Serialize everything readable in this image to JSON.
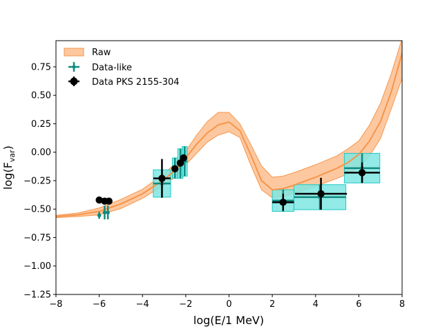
{
  "chart_data": {
    "type": "line",
    "title": "",
    "xlabel": "log(E/1 MeV)",
    "ylabel_main": "log(F",
    "ylabel_sub": "var",
    "ylabel_close": ")",
    "xlim": [
      -8,
      8
    ],
    "ylim": [
      -1.25,
      0.98
    ],
    "xticks": [
      -8,
      -6,
      -4,
      -2,
      0,
      2,
      4,
      6,
      8
    ],
    "xtick_labels": [
      "−8",
      "−6",
      "−4",
      "−2",
      "0",
      "2",
      "4",
      "6",
      "8"
    ],
    "yticks": [
      -1.25,
      -1.0,
      -0.75,
      -0.5,
      -0.25,
      0.0,
      0.25,
      0.5,
      0.75
    ],
    "ytick_labels": [
      "−1.25",
      "−1.00",
      "−0.75",
      "−0.50",
      "−0.25",
      "0.00",
      "0.25",
      "0.50",
      "0.75"
    ],
    "legend_position": "top-left",
    "legend": [
      {
        "label": "Raw",
        "kind": "band"
      },
      {
        "label": "Data-like",
        "kind": "errorbar-small"
      },
      {
        "label": "Data PKS 2155-304",
        "kind": "errorbar-large"
      }
    ],
    "colors": {
      "raw_line": "#f5954a",
      "raw_band": "#fdc8a0",
      "raw_band_edge": "#f5954a",
      "data_like": "#108a7e",
      "data_like_box": "#7fe6e2",
      "data_like_box_edge": "#1cc8c4",
      "data_pks": "#000000"
    },
    "raw_model": {
      "x": [
        -8.0,
        -7.0,
        -6.0,
        -5.0,
        -4.0,
        -3.0,
        -2.5,
        -2.0,
        -1.5,
        -1.0,
        -0.5,
        0.0,
        0.5,
        1.0,
        1.5,
        2.0,
        2.5,
        3.0,
        4.0,
        5.0,
        5.5,
        6.0,
        6.5,
        7.0,
        7.5,
        8.0
      ],
      "y": [
        -0.565,
        -0.55,
        -0.52,
        -0.455,
        -0.365,
        -0.24,
        -0.16,
        -0.05,
        0.07,
        0.17,
        0.24,
        0.265,
        0.19,
        -0.02,
        -0.25,
        -0.33,
        -0.32,
        -0.29,
        -0.22,
        -0.14,
        -0.09,
        -0.02,
        0.1,
        0.27,
        0.53,
        0.87
      ],
      "upper": [
        -0.555,
        -0.535,
        -0.49,
        -0.415,
        -0.325,
        -0.19,
        -0.1,
        0.01,
        0.15,
        0.27,
        0.35,
        0.35,
        0.25,
        0.07,
        -0.12,
        -0.22,
        -0.21,
        -0.18,
        -0.11,
        -0.03,
        0.03,
        0.1,
        0.24,
        0.43,
        0.69,
        1.0
      ],
      "lower": [
        -0.575,
        -0.565,
        -0.55,
        -0.495,
        -0.405,
        -0.29,
        -0.22,
        -0.11,
        -0.01,
        0.09,
        0.15,
        0.18,
        0.13,
        -0.11,
        -0.33,
        -0.4,
        -0.39,
        -0.36,
        -0.3,
        -0.23,
        -0.19,
        -0.13,
        -0.03,
        0.12,
        0.38,
        0.65
      ]
    },
    "data_like": [
      {
        "x": -6.0,
        "y": -0.555,
        "xerr": 0.06,
        "yerr": 0.03
      },
      {
        "x": -5.75,
        "y": -0.53,
        "xerr": 0.06,
        "yerr": 0.06
      },
      {
        "x": -5.6,
        "y": -0.53,
        "xerr": 0.06,
        "yerr": 0.06
      },
      {
        "x": -3.1,
        "y": -0.275,
        "xerr": 0.4,
        "yerr": 0.12,
        "box": true
      },
      {
        "x": -2.5,
        "y": -0.14,
        "xerr": 0.12,
        "yerr": 0.09,
        "box": true
      },
      {
        "x": -2.25,
        "y": -0.1,
        "xerr": 0.12,
        "yerr": 0.13,
        "box": true
      },
      {
        "x": -2.05,
        "y": -0.08,
        "xerr": 0.12,
        "yerr": 0.13,
        "box": true
      },
      {
        "x": 2.5,
        "y": -0.425,
        "xerr": 0.5,
        "yerr": 0.095,
        "box": true
      },
      {
        "x": 4.2,
        "y": -0.395,
        "xerr": 1.2,
        "yerr": 0.11,
        "box": true
      },
      {
        "x": 6.15,
        "y": -0.14,
        "xerr": 0.82,
        "yerr": 0.13,
        "box": true
      }
    ],
    "data_pks": [
      {
        "x": -6.0,
        "y": -0.42,
        "xerr": 0.0,
        "yerr": 0.0
      },
      {
        "x": -5.75,
        "y": -0.43,
        "xerr": 0.0,
        "yerr": 0.0
      },
      {
        "x": -5.55,
        "y": -0.43,
        "xerr": 0.0,
        "yerr": 0.0
      },
      {
        "x": -3.1,
        "y": -0.23,
        "xerr": 0.4,
        "yerr": 0.17
      },
      {
        "x": -2.5,
        "y": -0.145,
        "xerr": 0.0,
        "yerr": 0.0
      },
      {
        "x": -2.25,
        "y": -0.095,
        "xerr": 0.0,
        "yerr": 0.0
      },
      {
        "x": -2.1,
        "y": -0.05,
        "xerr": 0.0,
        "yerr": 0.0
      },
      {
        "x": 2.5,
        "y": -0.44,
        "xerr": 0.5,
        "yerr": 0.075
      },
      {
        "x": 4.25,
        "y": -0.365,
        "xerr": 1.2,
        "yerr": 0.14
      },
      {
        "x": 6.15,
        "y": -0.18,
        "xerr": 0.82,
        "yerr": 0.09
      }
    ]
  }
}
